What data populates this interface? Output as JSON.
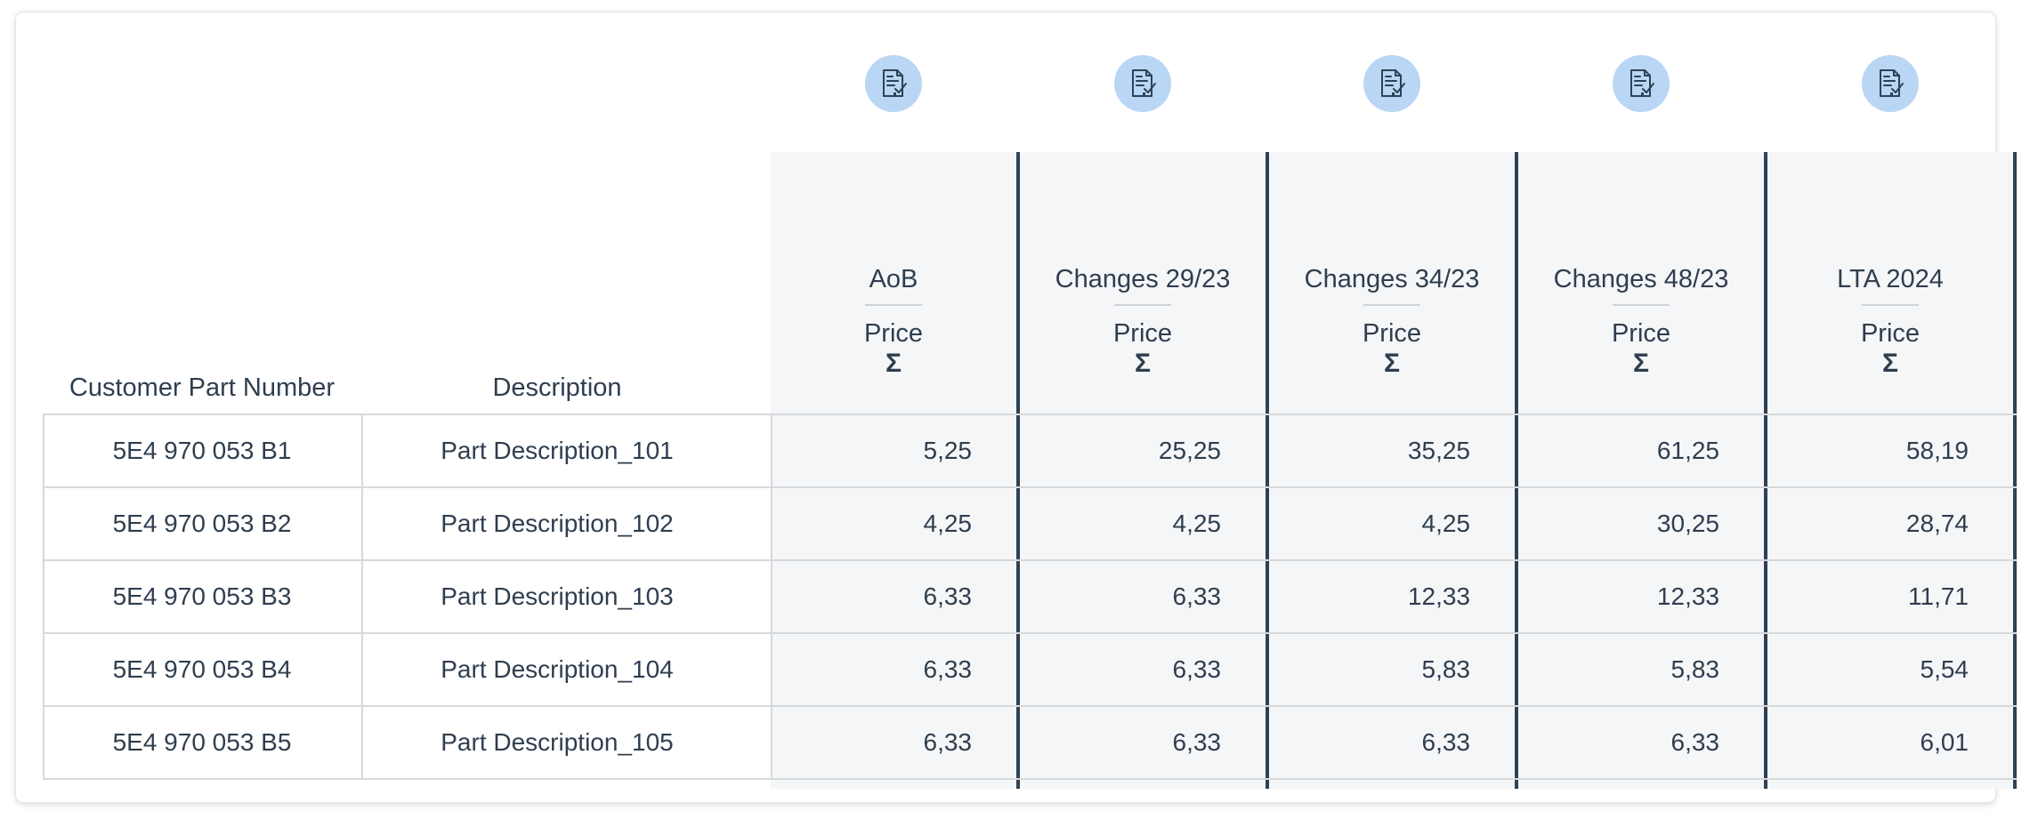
{
  "table": {
    "columns": [
      {
        "key": "part",
        "label": "Customer Part Number"
      },
      {
        "key": "desc",
        "label": "Description"
      }
    ],
    "price_columns": [
      {
        "title": "AoB",
        "metric": "Price",
        "aggregate": "Σ",
        "icon": "document-check-icon"
      },
      {
        "title": "Changes 29/23",
        "metric": "Price",
        "aggregate": "Σ",
        "icon": "document-check-icon"
      },
      {
        "title": "Changes 34/23",
        "metric": "Price",
        "aggregate": "Σ",
        "icon": "document-check-icon"
      },
      {
        "title": "Changes 48/23",
        "metric": "Price",
        "aggregate": "Σ",
        "icon": "document-check-icon"
      },
      {
        "title": "LTA 2024",
        "metric": "Price",
        "aggregate": "Σ",
        "icon": "document-check-icon"
      }
    ],
    "rows": [
      {
        "part": "5E4 970 053 B1",
        "desc": "Part Description_101",
        "prices": [
          "5,25",
          "25,25",
          "35,25",
          "61,25",
          "58,19"
        ]
      },
      {
        "part": "5E4 970 053 B2",
        "desc": "Part Description_102",
        "prices": [
          "4,25",
          "4,25",
          "4,25",
          "30,25",
          "28,74"
        ]
      },
      {
        "part": "5E4 970 053 B3",
        "desc": "Part Description_103",
        "prices": [
          "6,33",
          "6,33",
          "12,33",
          "12,33",
          "11,71"
        ]
      },
      {
        "part": "5E4 970 053 B4",
        "desc": "Part Description_104",
        "prices": [
          "6,33",
          "6,33",
          "5,83",
          "5,83",
          "5,54"
        ]
      },
      {
        "part": "5E4 970 053 B5",
        "desc": "Part Description_105",
        "prices": [
          "6,33",
          "6,33",
          "6,33",
          "6,33",
          "6,01"
        ]
      }
    ]
  },
  "colors": {
    "icon_bg": "#b9d6f5",
    "icon_fg": "#2e4255",
    "column_bg": "#f5f6f7",
    "divider": "#2e4255",
    "text": "#2f3e4f"
  }
}
